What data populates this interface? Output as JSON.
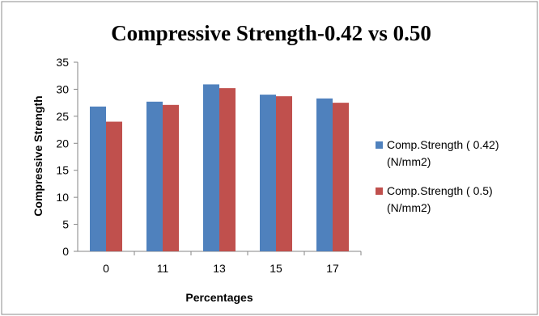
{
  "chart_data": {
    "type": "bar",
    "title": "Compressive Strength-0.42 vs 0.50",
    "xlabel": "Percentages",
    "ylabel": "Compressive Strength",
    "categories": [
      "0",
      "11",
      "13",
      "15",
      "17"
    ],
    "ylim": [
      0,
      35
    ],
    "yticks": [
      0,
      5,
      10,
      15,
      20,
      25,
      30,
      35
    ],
    "grid": false,
    "legend_position": "right",
    "series": [
      {
        "name": "Comp.Strength ( 0.42)",
        "name_line2": "(N/mm2)",
        "color": "#4f81bd",
        "values": [
          26.8,
          27.7,
          30.9,
          29.0,
          28.3
        ]
      },
      {
        "name": "Comp.Strength ( 0.5)",
        "name_line2": "(N/mm2)",
        "color": "#c0504d",
        "values": [
          24.0,
          27.1,
          30.2,
          28.7,
          27.5
        ]
      }
    ]
  }
}
